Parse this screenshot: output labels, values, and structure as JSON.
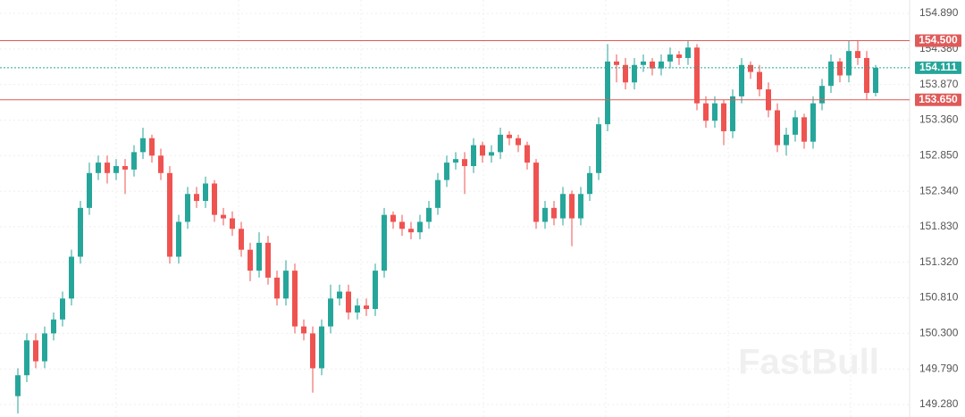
{
  "chart_data": {
    "type": "candlestick",
    "ylim": [
      149.101,
      155.082
    ],
    "yticks": [
      {
        "value": 154.89,
        "label": "154.890"
      },
      {
        "value": 154.38,
        "label": "154.380"
      },
      {
        "value": 153.87,
        "label": "153.870"
      },
      {
        "value": 153.36,
        "label": "153.360"
      },
      {
        "value": 152.85,
        "label": "152.850"
      },
      {
        "value": 152.34,
        "label": "152.340"
      },
      {
        "value": 151.83,
        "label": "151.830"
      },
      {
        "value": 151.32,
        "label": "151.320"
      },
      {
        "value": 150.81,
        "label": "150.810"
      },
      {
        "value": 150.3,
        "label": "150.300"
      },
      {
        "value": 149.79,
        "label": "149.790"
      },
      {
        "value": 149.28,
        "label": "149.280"
      }
    ],
    "grid": true,
    "up_color": "#26a69a",
    "down_color": "#ef5350",
    "open": [
      149.4,
      149.7,
      150.2,
      149.9,
      150.3,
      150.5,
      150.8,
      151.4,
      152.1,
      152.6,
      152.75,
      152.6,
      152.7,
      152.65,
      152.9,
      153.1,
      152.85,
      152.6,
      151.4,
      151.9,
      152.3,
      152.2,
      152.45,
      152.0,
      151.95,
      151.8,
      151.5,
      151.2,
      151.6,
      151.1,
      150.8,
      151.2,
      150.4,
      150.3,
      149.8,
      150.4,
      150.8,
      150.9,
      150.6,
      150.7,
      150.65,
      151.2,
      152.0,
      151.9,
      151.8,
      151.75,
      151.9,
      152.1,
      152.5,
      152.75,
      152.8,
      152.7,
      153.0,
      152.85,
      152.9,
      153.15,
      153.1,
      153.0,
      152.75,
      151.9,
      152.1,
      151.95,
      152.3,
      151.95,
      152.3,
      152.6,
      153.3,
      154.2,
      154.15,
      153.9,
      154.15,
      154.2,
      154.1,
      154.2,
      154.3,
      154.25,
      154.4,
      153.6,
      153.35,
      153.6,
      153.2,
      153.7,
      154.15,
      154.05,
      153.8,
      153.5,
      153.0,
      153.15,
      153.4,
      153.05,
      153.6,
      153.85,
      154.2,
      154.0,
      154.35,
      154.25,
      153.75
    ],
    "high": [
      149.8,
      150.3,
      150.3,
      150.4,
      150.6,
      150.9,
      151.5,
      152.2,
      152.75,
      152.85,
      152.85,
      152.8,
      152.8,
      153.0,
      153.25,
      153.15,
      152.95,
      152.7,
      152.0,
      152.4,
      152.4,
      152.55,
      152.5,
      152.1,
      152.05,
      151.9,
      151.6,
      151.75,
      151.7,
      151.2,
      151.35,
      151.3,
      150.5,
      150.4,
      150.5,
      151.0,
      151.0,
      151.0,
      150.8,
      150.8,
      151.3,
      152.1,
      152.05,
      152.0,
      151.9,
      152.0,
      152.2,
      152.6,
      152.85,
      152.9,
      152.9,
      153.1,
      153.05,
      153.0,
      153.25,
      153.2,
      153.15,
      153.05,
      152.8,
      152.2,
      152.2,
      152.4,
      152.35,
      152.4,
      152.7,
      153.4,
      154.45,
      154.3,
      154.25,
      154.25,
      154.3,
      154.25,
      154.3,
      154.4,
      154.35,
      154.5,
      154.45,
      153.7,
      153.7,
      153.65,
      153.8,
      154.25,
      154.2,
      154.15,
      153.9,
      153.6,
      153.25,
      153.5,
      153.45,
      153.7,
      153.95,
      154.3,
      154.25,
      154.5,
      154.5,
      154.35,
      154.15
    ],
    "low": [
      149.15,
      149.6,
      149.8,
      149.8,
      150.2,
      150.4,
      150.7,
      151.3,
      152.0,
      152.5,
      152.45,
      152.5,
      152.3,
      152.55,
      152.8,
      152.75,
      152.5,
      151.3,
      151.3,
      151.8,
      152.1,
      152.1,
      151.9,
      151.85,
      151.7,
      151.4,
      151.05,
      151.1,
      151.0,
      150.7,
      150.7,
      150.3,
      150.2,
      149.45,
      149.7,
      150.3,
      150.7,
      150.5,
      150.5,
      150.55,
      150.55,
      151.1,
      151.8,
      151.7,
      151.65,
      151.65,
      151.8,
      152.0,
      152.4,
      152.65,
      152.3,
      152.6,
      152.75,
      152.75,
      152.8,
      153.0,
      152.9,
      152.65,
      151.8,
      151.8,
      151.85,
      151.85,
      151.55,
      151.85,
      152.2,
      152.5,
      153.2,
      153.9,
      153.8,
      153.8,
      154.05,
      154.0,
      154.0,
      154.1,
      154.15,
      154.15,
      153.5,
      153.25,
      153.25,
      153.0,
      153.1,
      153.6,
      153.95,
      153.7,
      153.4,
      152.9,
      152.85,
      153.05,
      152.95,
      152.95,
      153.5,
      153.75,
      153.9,
      153.9,
      154.15,
      153.65,
      153.7
    ],
    "close": [
      149.7,
      150.2,
      149.9,
      150.3,
      150.5,
      150.8,
      151.4,
      152.1,
      152.6,
      152.75,
      152.6,
      152.7,
      152.65,
      152.9,
      153.1,
      152.85,
      152.6,
      151.4,
      151.9,
      152.3,
      152.2,
      152.45,
      152.0,
      151.95,
      151.8,
      151.5,
      151.2,
      151.6,
      151.1,
      150.8,
      151.2,
      150.4,
      150.3,
      149.8,
      150.4,
      150.8,
      150.9,
      150.6,
      150.7,
      150.65,
      151.2,
      152.0,
      151.9,
      151.8,
      151.75,
      151.9,
      152.1,
      152.5,
      152.75,
      152.8,
      152.7,
      153.0,
      152.85,
      152.9,
      153.15,
      153.1,
      153.0,
      152.75,
      151.9,
      152.1,
      151.95,
      152.3,
      151.95,
      152.3,
      152.6,
      153.3,
      154.2,
      154.15,
      153.9,
      154.15,
      154.2,
      154.1,
      154.2,
      154.3,
      154.25,
      154.4,
      153.6,
      153.35,
      153.6,
      153.2,
      153.7,
      154.15,
      154.05,
      153.8,
      153.5,
      153.0,
      153.15,
      153.4,
      153.05,
      153.6,
      153.85,
      154.2,
      154.0,
      154.35,
      154.25,
      153.75,
      154.11
    ],
    "hlines": [
      {
        "value": 154.5,
        "label": "154.500",
        "color": "#e05a5a",
        "style": "solid"
      },
      {
        "value": 153.65,
        "label": "153.650",
        "color": "#e05a5a",
        "style": "solid"
      },
      {
        "value": 154.111,
        "label": "154.111",
        "color": "#26a69a",
        "style": "dotted"
      }
    ],
    "watermark": "FastBull"
  }
}
